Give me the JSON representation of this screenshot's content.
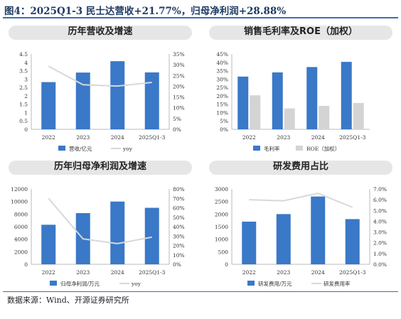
{
  "figure_title": "图4：2025Q1-3 民士达营收+21.77%，归母净利润+28.88%",
  "source": "数据来源：Wind、开源证券研究所",
  "colors": {
    "bar_primary": "#3a78c8",
    "bar_secondary": "#d4d4d4",
    "line": "#d8d8d8",
    "rule": "#3a6fb0"
  },
  "chart_data": [
    {
      "type": "bar",
      "title": "历年营收及增速",
      "categories": [
        "2022",
        "2023",
        "2024",
        "2025Q1-3"
      ],
      "series": [
        {
          "name": "营收/亿元",
          "kind": "bar",
          "axis": "left",
          "values": [
            2.82,
            3.39,
            4.07,
            3.4
          ]
        },
        {
          "name": "yoy",
          "kind": "line",
          "axis": "right",
          "values": [
            0.293,
            0.207,
            0.201,
            0.218
          ]
        }
      ],
      "ylim_left": [
        0,
        4.5
      ],
      "yticks_left": [
        "0",
        "0.5",
        "1",
        "1.5",
        "2",
        "2.5",
        "3",
        "3.5",
        "4",
        "4.5"
      ],
      "ylim_right": [
        0,
        0.35
      ],
      "yticks_right": [
        "0%",
        "5%",
        "10%",
        "15%",
        "20%",
        "25%",
        "30%",
        "35%"
      ],
      "legend_position": "bottom"
    },
    {
      "type": "bar",
      "title": "销售毛利率及ROE（加权）",
      "categories": [
        "2022",
        "2023",
        "2024",
        "2025Q1-3"
      ],
      "series": [
        {
          "name": "毛利率",
          "kind": "bar",
          "axis": "left",
          "values": [
            0.315,
            0.34,
            0.372,
            0.403
          ]
        },
        {
          "name": "ROE（加权）",
          "kind": "bar2",
          "axis": "left",
          "values": [
            0.203,
            0.125,
            0.14,
            0.157
          ]
        }
      ],
      "ylim_left": [
        0,
        0.45
      ],
      "yticks_left": [
        "0%",
        "5%",
        "10%",
        "15%",
        "20%",
        "25%",
        "30%",
        "35%",
        "40%",
        "45%"
      ],
      "legend_position": "bottom"
    },
    {
      "type": "bar",
      "title": "历年归母净利润及增速",
      "categories": [
        "2022",
        "2023",
        "2024",
        "2025Q1-3"
      ],
      "series": [
        {
          "name": "归母净利润/万元",
          "kind": "bar",
          "axis": "left",
          "values": [
            6300,
            8150,
            10000,
            9000
          ]
        },
        {
          "name": "yoy",
          "kind": "line",
          "axis": "right",
          "values": [
            0.7,
            0.27,
            0.22,
            0.289
          ]
        }
      ],
      "ylim_left": [
        0,
        12000
      ],
      "yticks_left": [
        "0",
        "2000",
        "4000",
        "6000",
        "8000",
        "10000",
        "12000"
      ],
      "ylim_right": [
        0,
        0.8
      ],
      "yticks_right": [
        "0%",
        "10%",
        "20%",
        "30%",
        "40%",
        "50%",
        "60%",
        "70%",
        "80%"
      ],
      "legend_position": "bottom"
    },
    {
      "type": "bar",
      "title": "研发费用占比",
      "categories": [
        "2022",
        "2023",
        "2024",
        "2025Q1-3"
      ],
      "series": [
        {
          "name": "研发费用/万元",
          "kind": "bar",
          "axis": "left",
          "values": [
            1700,
            2000,
            2700,
            1800
          ]
        },
        {
          "name": "研发费用率",
          "kind": "line",
          "axis": "right",
          "values": [
            0.06,
            0.059,
            0.066,
            0.053
          ]
        }
      ],
      "ylim_left": [
        0,
        3000
      ],
      "yticks_left": [
        "0",
        "500",
        "1000",
        "1500",
        "2000",
        "2500",
        "3000"
      ],
      "ylim_right": [
        0,
        0.07
      ],
      "yticks_right": [
        "0.0%",
        "1.0%",
        "2.0%",
        "3.0%",
        "4.0%",
        "5.0%",
        "6.0%",
        "7.0%"
      ],
      "legend_position": "bottom"
    }
  ]
}
